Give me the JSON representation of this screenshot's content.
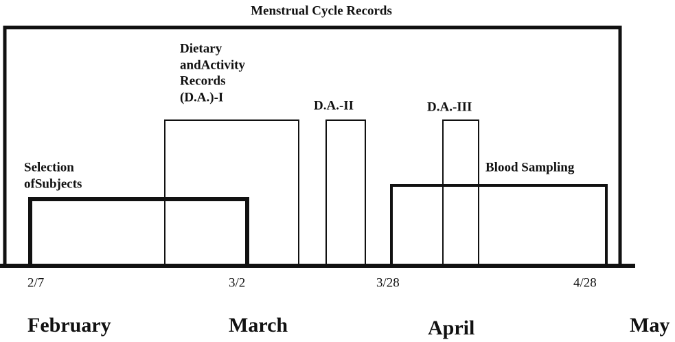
{
  "title": "Menstrual Cycle Records",
  "phases": [
    {
      "lines": [
        "Selection",
        "ofSubjects"
      ]
    },
    {
      "lines": [
        "Dietary",
        "andActivity",
        "Records",
        "(D.A.)-I"
      ]
    },
    {
      "lines": [
        "D.A.-II"
      ]
    },
    {
      "lines": [
        "D.A.-III"
      ]
    },
    {
      "lines": [
        "Blood Sampling"
      ]
    }
  ],
  "dates": [
    "2/7",
    "3/2",
    "3/28",
    "4/28"
  ],
  "months": [
    "February",
    "March",
    "April",
    "May"
  ]
}
